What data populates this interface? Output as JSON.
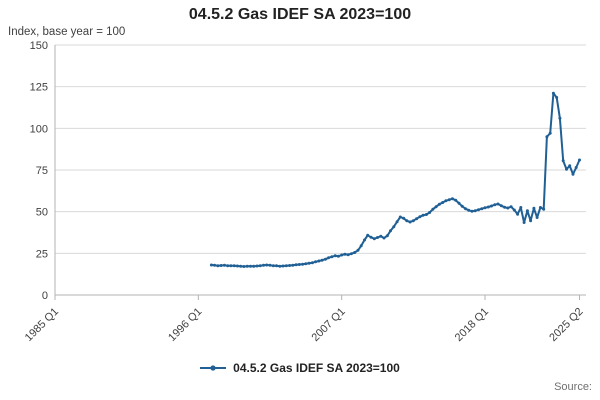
{
  "title": "04.5.2 Gas IDEF SA 2023=100",
  "y_axis_unit_label": "Index, base year = 100",
  "source_label": "Source:",
  "legend": {
    "label": "04.5.2 Gas IDEF SA 2023=100"
  },
  "colors": {
    "line": "#206095",
    "grid": "#d9d9d9",
    "axis": "#b3b3b3",
    "text": "#414042",
    "title_text": "#222222",
    "source_text": "#707071"
  },
  "chart_data": {
    "type": "line",
    "title": "04.5.2 Gas IDEF SA 2023=100",
    "xlabel": "",
    "ylabel": "Index, base year = 100",
    "ylim": [
      0,
      150
    ],
    "yticks": [
      0,
      25,
      50,
      75,
      100,
      125,
      150
    ],
    "xlim_years": [
      1985.0,
      2025.75
    ],
    "xticks": [
      {
        "label": "1985 Q1",
        "year": 1985.0
      },
      {
        "label": "1996 Q1",
        "year": 1996.0
      },
      {
        "label": "2007 Q1",
        "year": 2007.0
      },
      {
        "label": "2018 Q1",
        "year": 2018.0
      },
      {
        "label": "2025 Q2",
        "year": 2025.25
      }
    ],
    "grid": true,
    "legend_position": "bottom",
    "series": [
      {
        "name": "04.5.2 Gas IDEF SA 2023=100",
        "frequency": "quarterly",
        "start_year": 1997,
        "start_quarter": 1,
        "values": [
          18.0,
          17.8,
          17.6,
          17.7,
          17.9,
          17.6,
          17.5,
          17.6,
          17.4,
          17.2,
          17.1,
          17.3,
          17.3,
          17.2,
          17.4,
          17.6,
          17.9,
          18.0,
          17.8,
          17.6,
          17.5,
          17.3,
          17.4,
          17.6,
          17.7,
          17.9,
          18.1,
          18.3,
          18.5,
          18.7,
          19.0,
          19.4,
          19.9,
          20.4,
          20.9,
          21.5,
          22.3,
          23.0,
          23.5,
          23.2,
          24.0,
          24.5,
          24.2,
          24.8,
          25.5,
          26.8,
          29.5,
          33.0,
          35.8,
          34.6,
          33.8,
          34.5,
          35.2,
          34.2,
          35.5,
          38.5,
          41.0,
          44.0,
          46.8,
          46.0,
          44.5,
          43.8,
          44.6,
          45.8,
          47.0,
          47.8,
          48.3,
          49.5,
          51.5,
          53.0,
          54.5,
          55.5,
          56.5,
          57.2,
          57.8,
          56.8,
          55.0,
          53.2,
          51.8,
          50.8,
          50.2,
          50.6,
          51.2,
          51.8,
          52.3,
          52.8,
          53.4,
          54.2,
          54.6,
          53.6,
          52.6,
          52.2,
          53.0,
          51.0,
          48.5,
          52.5,
          43.5,
          50.5,
          44.5,
          52.0,
          46.5,
          52.5,
          51.5,
          95.0,
          97.0,
          121.0,
          118.5,
          106.0,
          80.5,
          75.5,
          77.5,
          72.5,
          76.5,
          81.0
        ]
      }
    ]
  }
}
